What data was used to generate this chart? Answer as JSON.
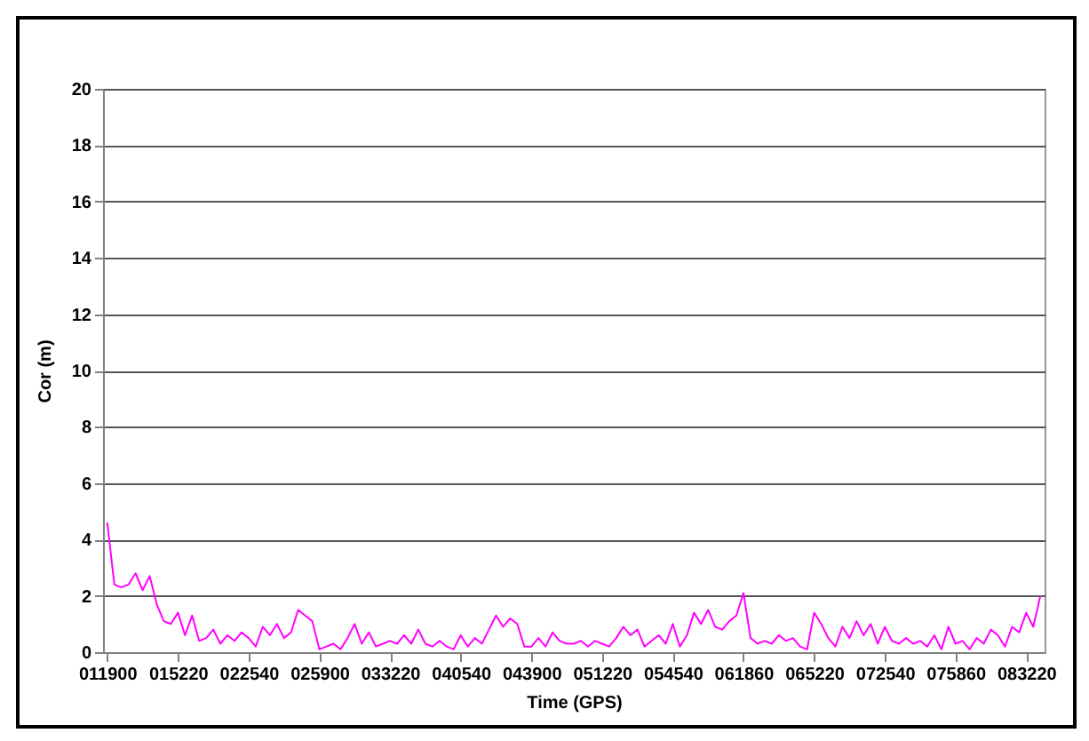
{
  "chart_data": {
    "type": "line",
    "xlabel": "Time (GPS)",
    "ylabel": "Cor (m)",
    "categories": [
      "011900",
      null,
      null,
      null,
      null,
      null,
      null,
      null,
      null,
      null,
      "015220",
      null,
      null,
      null,
      null,
      null,
      null,
      null,
      null,
      null,
      "022540",
      null,
      null,
      null,
      null,
      null,
      null,
      null,
      null,
      null,
      "025900",
      null,
      null,
      null,
      null,
      null,
      null,
      null,
      null,
      null,
      "033220",
      null,
      null,
      null,
      null,
      null,
      null,
      null,
      null,
      null,
      "040540",
      null,
      null,
      null,
      null,
      null,
      null,
      null,
      null,
      null,
      "043900",
      null,
      null,
      null,
      null,
      null,
      null,
      null,
      null,
      null,
      "051220",
      null,
      null,
      null,
      null,
      null,
      null,
      null,
      null,
      null,
      "054540",
      null,
      null,
      null,
      null,
      null,
      null,
      null,
      null,
      null,
      "061860",
      null,
      null,
      null,
      null,
      null,
      null,
      null,
      null,
      null,
      "065220",
      null,
      null,
      null,
      null,
      null,
      null,
      null,
      null,
      null,
      "072540",
      null,
      null,
      null,
      null,
      null,
      null,
      null,
      null,
      null,
      "075860",
      null,
      null,
      null,
      null,
      null,
      null,
      null,
      null,
      null,
      "083220",
      null,
      null
    ],
    "series": [
      {
        "color": "#ff00ff",
        "values": [
          4.6,
          2.4,
          2.3,
          2.4,
          2.8,
          2.2,
          2.7,
          1.7,
          1.1,
          1.0,
          1.4,
          0.6,
          1.3,
          0.4,
          0.5,
          0.8,
          0.3,
          0.6,
          0.4,
          0.7,
          0.5,
          0.2,
          0.9,
          0.6,
          1.0,
          0.5,
          0.7,
          1.5,
          1.3,
          1.1,
          0.1,
          0.2,
          0.3,
          0.1,
          0.5,
          1.0,
          0.3,
          0.7,
          0.2,
          0.3,
          0.4,
          0.3,
          0.6,
          0.3,
          0.8,
          0.3,
          0.2,
          0.4,
          0.2,
          0.1,
          0.6,
          0.2,
          0.5,
          0.3,
          0.8,
          1.3,
          0.9,
          1.2,
          1.0,
          0.2,
          0.2,
          0.5,
          0.2,
          0.7,
          0.4,
          0.3,
          0.3,
          0.4,
          0.2,
          0.4,
          0.3,
          0.2,
          0.5,
          0.9,
          0.6,
          0.8,
          0.2,
          0.4,
          0.6,
          0.3,
          1.0,
          0.2,
          0.6,
          1.4,
          1.0,
          1.5,
          0.9,
          0.8,
          1.1,
          1.3,
          2.1,
          0.5,
          0.3,
          0.4,
          0.3,
          0.6,
          0.4,
          0.5,
          0.2,
          0.1,
          1.4,
          1.0,
          0.5,
          0.2,
          0.9,
          0.5,
          1.1,
          0.6,
          1.0,
          0.3,
          0.9,
          0.4,
          0.3,
          0.5,
          0.3,
          0.4,
          0.2,
          0.6,
          0.1,
          0.9,
          0.3,
          0.4,
          0.1,
          0.5,
          0.3,
          0.8,
          0.6,
          0.2,
          0.9,
          0.7,
          1.4,
          0.9,
          2.0
        ]
      }
    ],
    "ylim": [
      0,
      20
    ],
    "yticks": [
      0,
      2,
      4,
      6,
      8,
      10,
      12,
      14,
      16,
      18,
      20
    ],
    "grid": "y",
    "marker": "none",
    "line_style": "solid"
  }
}
